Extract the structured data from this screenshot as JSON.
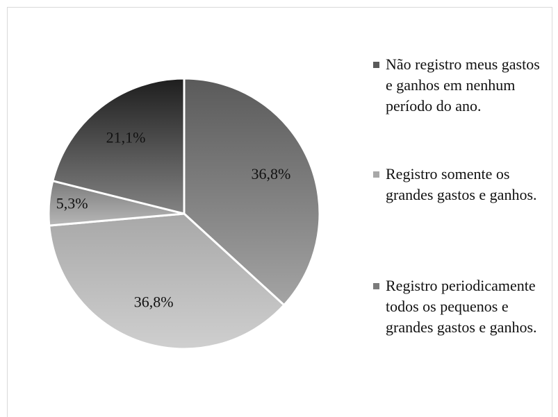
{
  "chart_data": {
    "type": "pie",
    "categories": [
      "Não registro meus gastos e ganhos em nenhum período do ano.",
      "Registro somente os grandes gastos e ganhos.",
      "Registro periodicamente todos os pequenos e grandes gastos e ganhos.",
      null
    ],
    "values": [
      36.8,
      36.8,
      5.3,
      21.1
    ],
    "value_labels": [
      "36,8%",
      "36,8%",
      "5,3%",
      "21,1%"
    ],
    "colors": [
      "#5a5a5a",
      "#a8a8a8",
      "#7c7c7c",
      "#1e1e1e"
    ],
    "legend": "right"
  }
}
